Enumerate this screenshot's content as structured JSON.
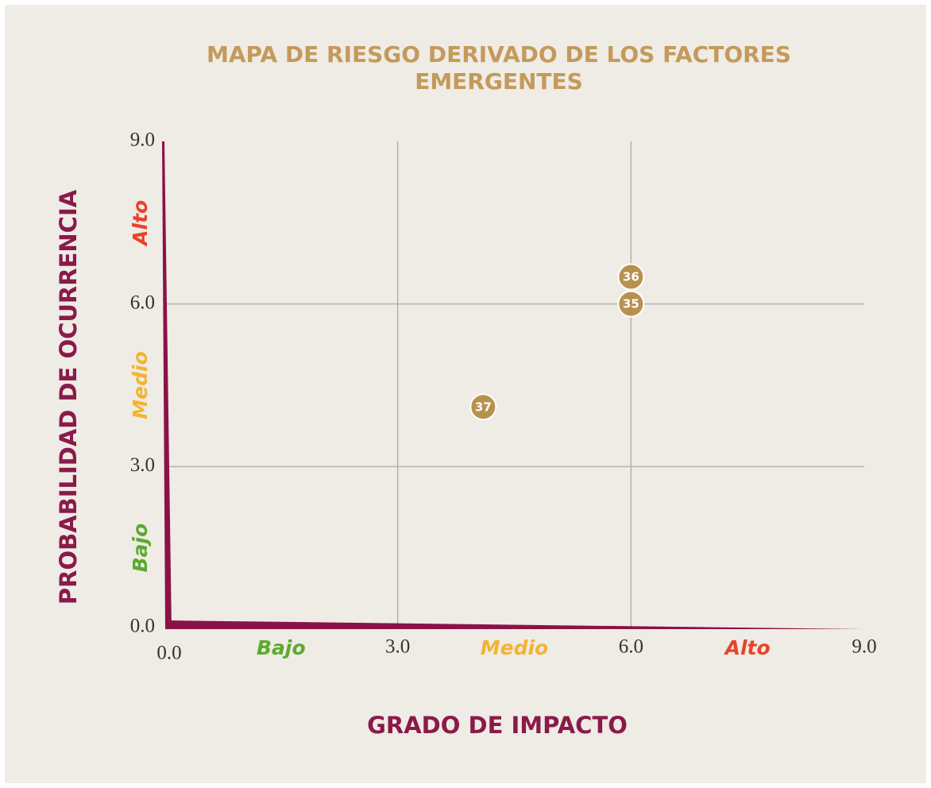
{
  "chart_data": {
    "type": "scatter",
    "title": "MAPA DE RIESGO DERIVADO DE LOS FACTORES EMERGENTES",
    "x_label": "GRADO DE IMPACTO",
    "y_label": "PROBABILIDAD DE OCURRENCIA",
    "xlim": [
      0,
      9
    ],
    "ylim": [
      0,
      9
    ],
    "xticks": [
      {
        "value": 0,
        "label": "0.0"
      },
      {
        "value": 3,
        "label": "3.0"
      },
      {
        "value": 6,
        "label": "6.0"
      },
      {
        "value": 9,
        "label": "9.0"
      }
    ],
    "yticks": [
      {
        "value": 0,
        "label": "0.0"
      },
      {
        "value": 3,
        "label": "3.0"
      },
      {
        "value": 6,
        "label": "6.0"
      },
      {
        "value": 9,
        "label": "9.0"
      }
    ],
    "zone_labels": [
      "Bajo",
      "Medio",
      "Alto"
    ],
    "zone_colors": [
      "#5aab2e",
      "#f2b430",
      "#e8432a"
    ],
    "grid": true,
    "color": "#b8914f",
    "point_labels": [
      "35",
      "36",
      "37"
    ],
    "x": [
      6.0,
      6.0,
      4.1
    ],
    "values": [
      6.0,
      6.5,
      4.1
    ]
  }
}
